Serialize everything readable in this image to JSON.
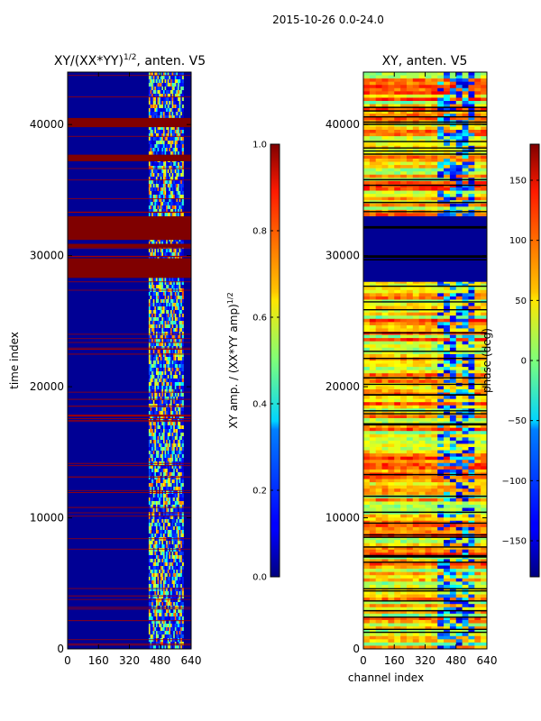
{
  "suptitle": "2015-10-26 0.0-24.0",
  "chart_data": [
    {
      "type": "heatmap",
      "title": "XY/(XX*YY)^1/2, anten. V5",
      "title_main": "XY/(XX*YY)",
      "title_sup": "1/2",
      "title_rest": ", anten. V5",
      "xlabel": "",
      "ylabel": "time index",
      "xlim": [
        0,
        640
      ],
      "ylim": [
        0,
        44000
      ],
      "xticks": [
        0,
        160,
        320,
        480,
        640
      ],
      "yticks": [
        0,
        10000,
        20000,
        30000,
        40000
      ],
      "colorbar": {
        "label": "XY amp. / (XX*YY amp)^1/2",
        "label_main": "XY amp. / (XX*YY amp)",
        "label_sup": "1/2",
        "range": [
          0.0,
          1.0
        ],
        "ticks": [
          "0.0",
          "0.2",
          "0.4",
          "0.6",
          "0.8",
          "1.0"
        ],
        "tick_values": [
          0,
          0.2,
          0.4,
          0.6,
          0.8,
          1.0
        ],
        "colormap": "jet"
      },
      "features": {
        "background_value": 0.02,
        "saturated_bands_time": [
          [
            28300,
            29800
          ],
          [
            30600,
            30900
          ],
          [
            31200,
            33000
          ],
          [
            37200,
            37700
          ],
          [
            39800,
            40500
          ]
        ],
        "bright_channel_band": [
          420,
          600
        ]
      }
    },
    {
      "type": "heatmap",
      "title": "XY, anten. V5",
      "xlabel": "channel index",
      "ylabel": "",
      "xlim": [
        0,
        640
      ],
      "ylim": [
        0,
        44000
      ],
      "xticks": [
        0,
        160,
        320,
        480,
        640
      ],
      "yticks": [
        0,
        10000,
        20000,
        30000,
        40000
      ],
      "colorbar": {
        "label": "phase (deg)",
        "range": [
          -180,
          180
        ],
        "ticks": [
          "−150",
          "−100",
          "−50",
          "0",
          "50",
          "100",
          "150"
        ],
        "tick_values": [
          -150,
          -100,
          -50,
          0,
          50,
          100,
          150
        ],
        "colormap": "jet"
      },
      "features": {
        "flagged_band_time": [
          28000,
          33000
        ],
        "dominant_phase_deg": 100
      }
    }
  ]
}
